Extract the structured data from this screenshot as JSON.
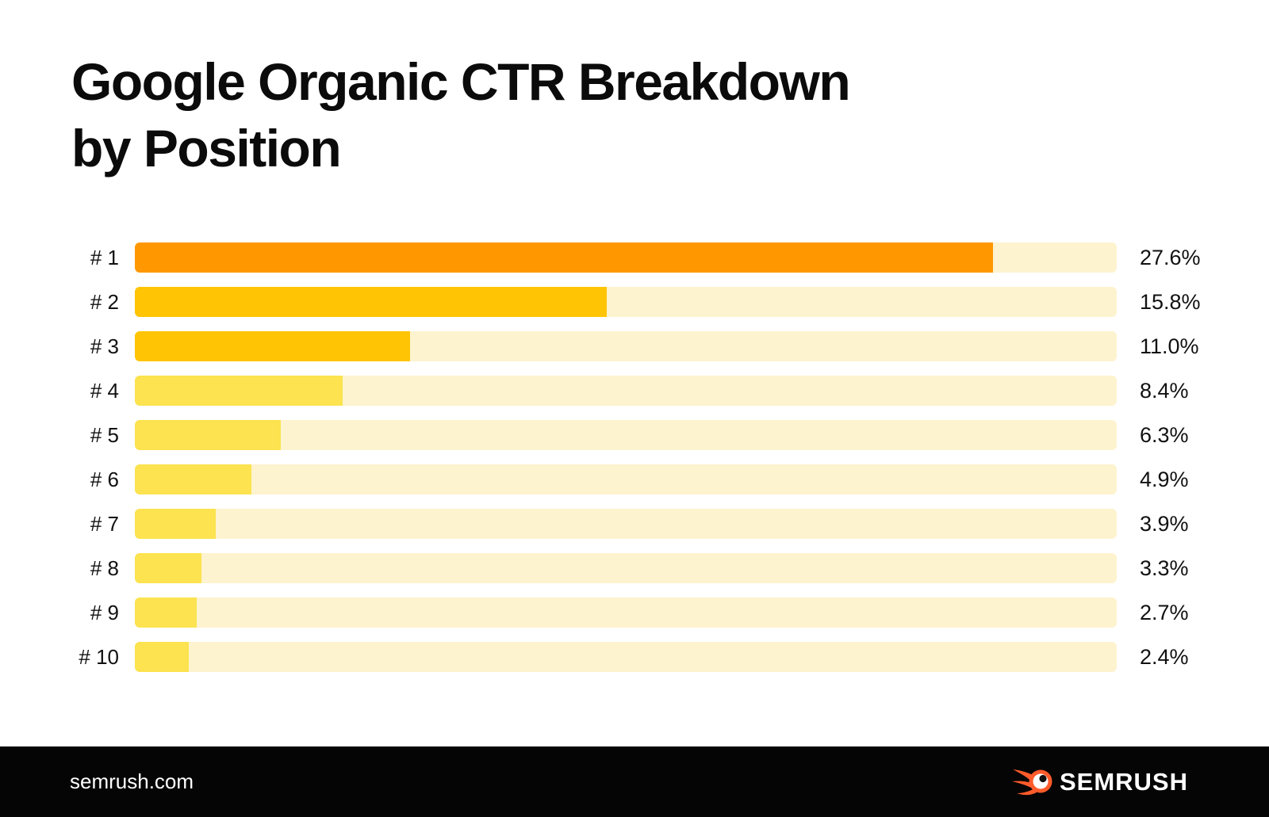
{
  "header": {
    "title_line1": "Google Organic CTR Breakdown",
    "title_line2": "by Position"
  },
  "chart_data": {
    "type": "bar",
    "orientation": "horizontal",
    "title": "Google Organic CTR Breakdown by Position",
    "categories": [
      "# 1",
      "# 2",
      "# 3",
      "# 4",
      "# 5",
      "# 6",
      "# 7",
      "# 8",
      "# 9",
      "# 10"
    ],
    "values": [
      27.6,
      15.8,
      11.0,
      8.4,
      6.3,
      4.9,
      3.9,
      3.3,
      2.7,
      2.4
    ],
    "value_labels": [
      "27.6%",
      "15.8%",
      "11.0%",
      "8.4%",
      "6.3%",
      "4.9%",
      "3.9%",
      "3.3%",
      "2.7%",
      "2.4%"
    ],
    "unit": "%",
    "bar_fill_percents": [
      87.4,
      48.1,
      28.0,
      21.2,
      14.9,
      11.9,
      8.2,
      6.8,
      6.3,
      5.5
    ],
    "bar_colors": [
      "#FF9800",
      "#FFC403",
      "#FFC403",
      "#FCE34F",
      "#FCE34F",
      "#FCE34F",
      "#FCE34F",
      "#FCE34F",
      "#FCE34F",
      "#FCE34F"
    ],
    "track_color": "#FDF3CF",
    "text_color": "#111111",
    "grid": false,
    "legend": "none"
  },
  "footer": {
    "website": "semrush.com",
    "brand": "SEMRUSH",
    "brand_color": "#FF5B2B",
    "background": "#050505"
  }
}
